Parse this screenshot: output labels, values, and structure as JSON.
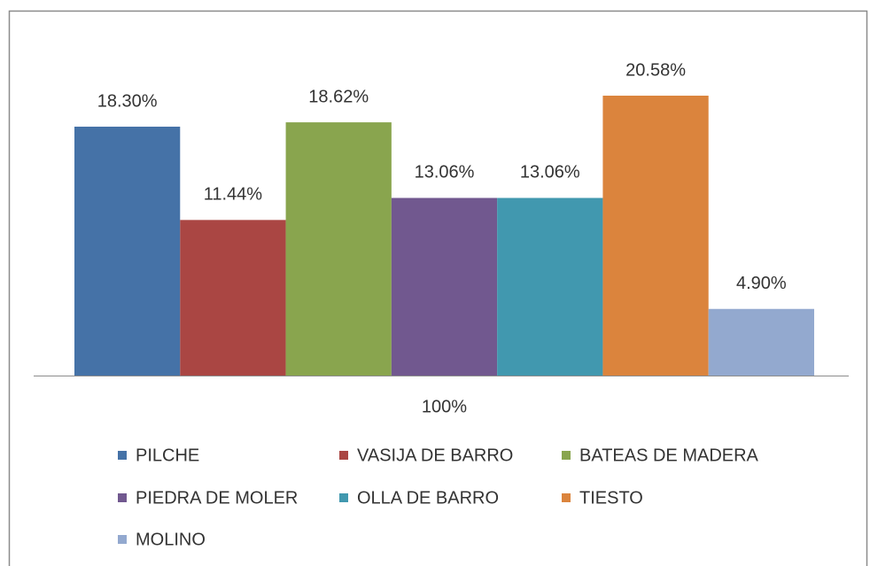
{
  "chart_data": {
    "type": "bar",
    "categories": [
      "100%"
    ],
    "series": [
      {
        "name": "PILCHE",
        "color": "#4572a7",
        "values": [
          18.3
        ],
        "value_labels": [
          "18.30%"
        ]
      },
      {
        "name": "VASIJA DE BARRO",
        "color": "#aa4643",
        "values": [
          11.44
        ],
        "value_labels": [
          "11.44%"
        ]
      },
      {
        "name": "BATEAS DE MADERA",
        "color": "#89a54e",
        "values": [
          18.62
        ],
        "value_labels": [
          "18.62%"
        ]
      },
      {
        "name": "PIEDRA DE MOLER",
        "color": "#71588f",
        "values": [
          13.06
        ],
        "value_labels": [
          "13.06%"
        ]
      },
      {
        "name": "OLLA DE BARRO",
        "color": "#4198af",
        "values": [
          13.06
        ],
        "value_labels": [
          "13.06%"
        ]
      },
      {
        "name": "TIESTO",
        "color": "#db843d",
        "values": [
          20.58
        ],
        "value_labels": [
          "20.58%"
        ]
      },
      {
        "name": "MOLINO",
        "color": "#93a9cf",
        "values": [
          4.9
        ],
        "value_labels": [
          "4.90%"
        ]
      }
    ],
    "legend": "bottom"
  }
}
